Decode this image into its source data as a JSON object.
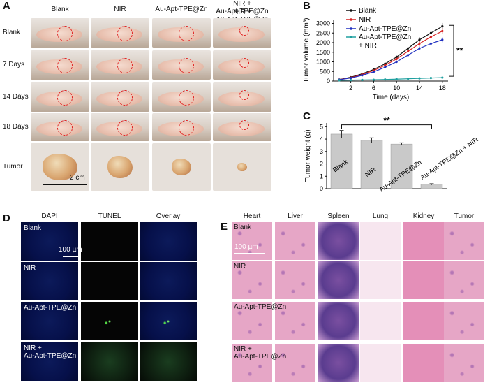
{
  "panels": {
    "A": "A",
    "B": "B",
    "C": "C",
    "D": "D",
    "E": "E"
  },
  "panelA": {
    "columns": [
      "Blank",
      "NIR",
      "Au-Apt-TPE@Zn",
      "NIR +\nAu-Apt-TPE@Zn"
    ],
    "rows": [
      "Blank",
      "7 Days",
      "14 Days",
      "18 Days",
      "Tumor"
    ],
    "scale": "2 cm"
  },
  "chart_data": [
    {
      "type": "line",
      "title": "",
      "xlabel": "Time (days)",
      "ylabel": "Tumor volume (mm³)",
      "x": [
        0,
        2,
        4,
        6,
        8,
        10,
        12,
        14,
        16,
        18
      ],
      "xticks": [
        "2",
        "6",
        "10",
        "14",
        "18"
      ],
      "xtick_values": [
        2,
        6,
        10,
        14,
        18
      ],
      "yticks": [
        "0",
        "500",
        "1000",
        "1500",
        "2000",
        "2500",
        "3000"
      ],
      "ylim": [
        0,
        3200
      ],
      "xlim": [
        -1,
        19
      ],
      "series": [
        {
          "name": "Blank",
          "color": "#111111",
          "values": [
            80,
            200,
            380,
            600,
            900,
            1250,
            1700,
            2150,
            2500,
            2850
          ]
        },
        {
          "name": "NIR",
          "color": "#d62020",
          "values": [
            75,
            180,
            340,
            550,
            820,
            1150,
            1550,
            1950,
            2300,
            2600
          ]
        },
        {
          "name": "Au-Apt-TPE@Zn",
          "color": "#2030c0",
          "values": [
            70,
            160,
            300,
            480,
            720,
            1000,
            1350,
            1700,
            1950,
            2150
          ]
        },
        {
          "name": "Au-Apt-TPE@Zn + NIR",
          "color": "#20a0a0",
          "values": [
            40,
            50,
            60,
            70,
            85,
            100,
            120,
            140,
            160,
            180
          ]
        }
      ],
      "legend": [
        "Blank",
        "NIR",
        "Au-Apt-TPE@Zn",
        "Au-Apt-TPE@Zn",
        "+ NIR"
      ],
      "significance": "**"
    },
    {
      "type": "bar",
      "xlabel": "",
      "ylabel": "Tumor weight (g)",
      "categories": [
        "Blank",
        "NIR",
        "Au-Apt-TPE@Zn",
        "Au-Apt-TPE@Zn + NIR"
      ],
      "values": [
        4.4,
        3.9,
        3.6,
        0.35
      ],
      "errors": [
        0.3,
        0.2,
        0.1,
        0.05
      ],
      "yticks": [
        "0",
        "1",
        "2",
        "3",
        "4",
        "5"
      ],
      "ylim": [
        0,
        5.3
      ],
      "significance": "**"
    }
  ],
  "panelD": {
    "columns": [
      "DAPI",
      "TUNEL",
      "Overlay"
    ],
    "rows": [
      "Blank",
      "NIR",
      "Au-Apt-TPE@Zn",
      "NIR +\nAu-Apt-TPE@Zn"
    ],
    "scale": "100 µm"
  },
  "panelE": {
    "columns": [
      "Heart",
      "Liver",
      "Spleen",
      "Lung",
      "Kidney",
      "Tumor"
    ],
    "rows": [
      "Blank",
      "NIR",
      "Au-Apt-TPE@Zn",
      "NIR +\nAu-Apt-TPE@Zn"
    ],
    "scale": "100 µm"
  }
}
